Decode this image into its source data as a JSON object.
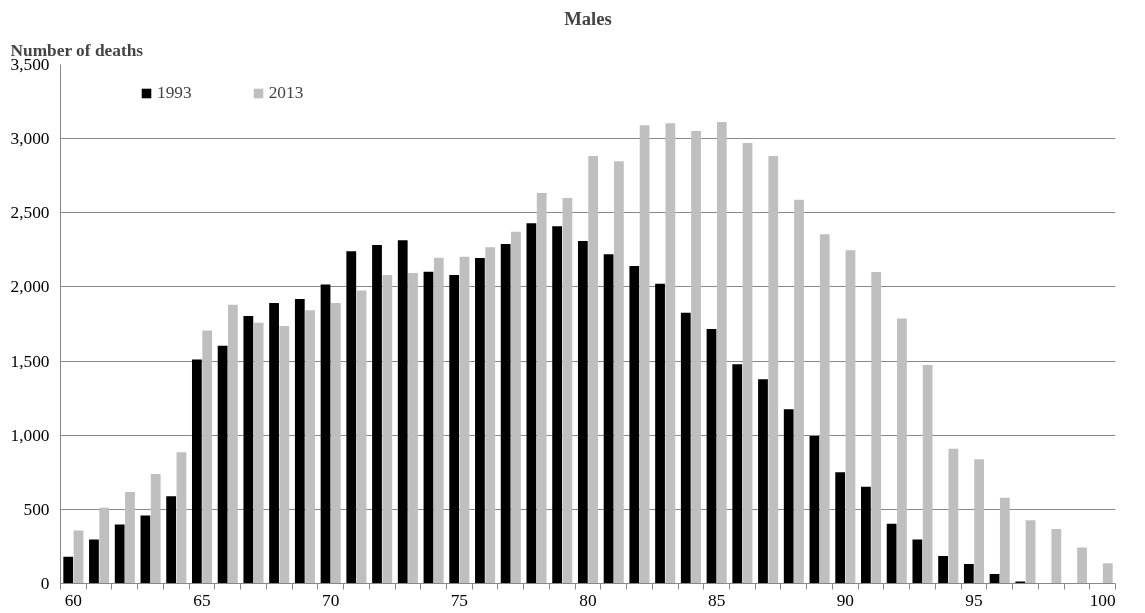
{
  "chart_data": {
    "type": "bar",
    "title": "Males",
    "ylabel": "Number of deaths",
    "categories": [
      "60",
      null,
      null,
      null,
      null,
      "65",
      null,
      null,
      null,
      null,
      "70",
      null,
      null,
      null,
      null,
      "75",
      null,
      null,
      null,
      null,
      "80",
      null,
      null,
      null,
      null,
      "85",
      null,
      null,
      null,
      null,
      "90",
      null,
      null,
      null,
      null,
      "95",
      null,
      null,
      null,
      null,
      "100"
    ],
    "series": [
      {
        "name": "1993",
        "color": "#000000",
        "values": [
          181,
          297,
          398,
          459,
          589,
          1510,
          1604,
          1804,
          1891,
          1919,
          2016,
          2240,
          2282,
          2315,
          2103,
          2080,
          2195,
          2289,
          2430,
          2410,
          2310,
          2221,
          2141,
          2021,
          1826,
          1717,
          1479,
          1378,
          1175,
          994,
          751,
          652,
          403,
          297,
          186,
          132,
          64,
          14,
          0,
          0,
          0
        ]
      },
      {
        "name": "2013",
        "color": "#bfbfbf",
        "values": [
          358,
          511,
          617,
          739,
          885,
          1707,
          1879,
          1759,
          1736,
          1842,
          1891,
          1976,
          2080,
          2094,
          2197,
          2204,
          2268,
          2372,
          2633,
          2600,
          2883,
          2848,
          3090,
          3104,
          3052,
          3113,
          2970,
          2883,
          2588,
          2355,
          2247,
          2101,
          1787,
          1474,
          909,
          838,
          579,
          426,
          367,
          242,
          136
        ]
      }
    ],
    "ylim": [
      0,
      3500
    ],
    "yticks": [
      {
        "value": 0,
        "label": "0"
      },
      {
        "value": 500,
        "label": "500"
      },
      {
        "value": 1000,
        "label": "1,000"
      },
      {
        "value": 1500,
        "label": "1,500"
      },
      {
        "value": 2000,
        "label": "2,000"
      },
      {
        "value": 2500,
        "label": "2,500"
      },
      {
        "value": 3000,
        "label": "3,000"
      },
      {
        "value": 3500,
        "label": "3,500"
      }
    ],
    "grid": "y",
    "legend": "top left"
  }
}
